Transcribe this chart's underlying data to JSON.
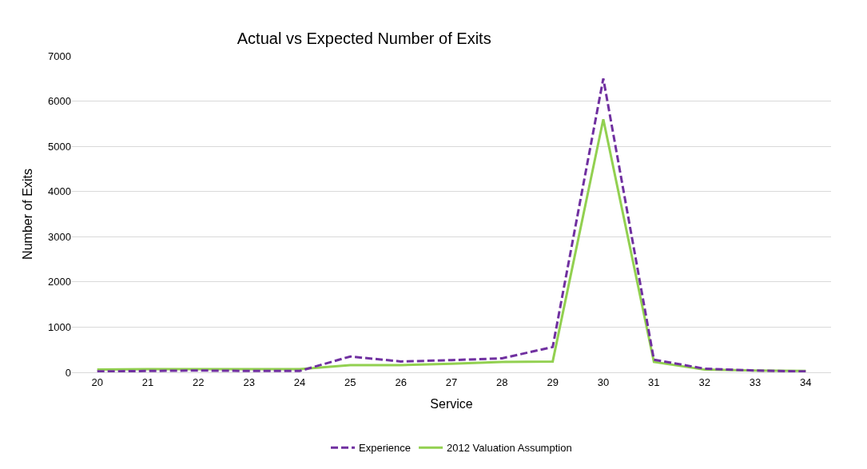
{
  "chart_data": {
    "type": "line",
    "title": "Actual vs Expected Number of Exits",
    "xlabel": "Service",
    "ylabel": "Number of Exits",
    "categories": [
      "20",
      "21",
      "22",
      "23",
      "24",
      "25",
      "26",
      "27",
      "28",
      "29",
      "30",
      "31",
      "32",
      "33",
      "34"
    ],
    "series": [
      {
        "name": "Experience",
        "color": "#7030a0",
        "line_style": "dashed",
        "values": [
          20,
          30,
          40,
          30,
          30,
          350,
          240,
          270,
          310,
          560,
          6500,
          280,
          80,
          40,
          20
        ]
      },
      {
        "name": "2012 Valuation Assumption",
        "color": "#92d050",
        "line_style": "solid",
        "values": [
          60,
          70,
          70,
          70,
          70,
          160,
          160,
          190,
          230,
          240,
          5600,
          230,
          60,
          40,
          30
        ]
      }
    ],
    "ylim": [
      0,
      7000
    ],
    "yticks": [
      0,
      1000,
      2000,
      3000,
      4000,
      5000,
      6000,
      7000
    ],
    "grid": "y",
    "legend": "bottom",
    "marker": "none"
  }
}
